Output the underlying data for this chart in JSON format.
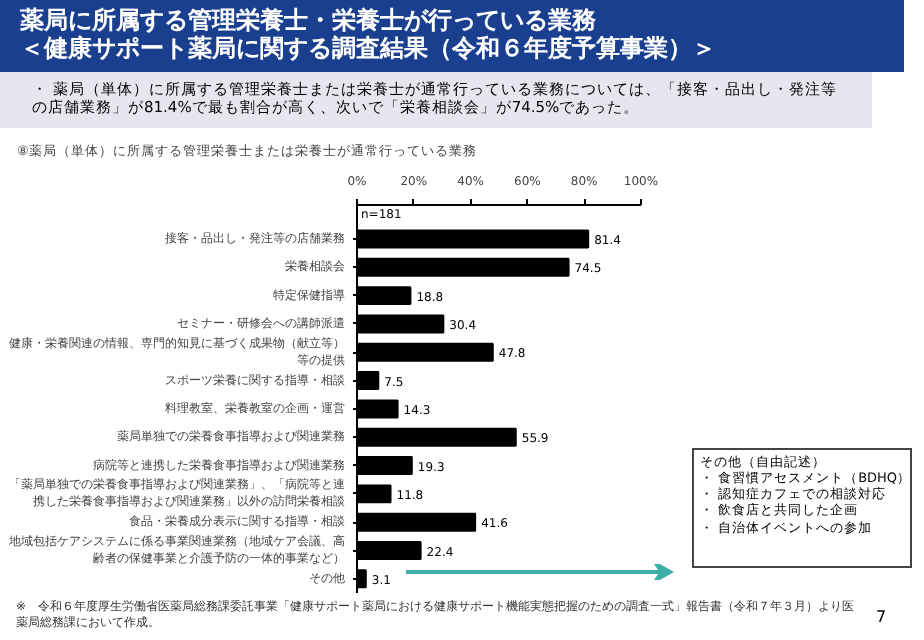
{
  "chart_data": {
    "type": "bar",
    "orientation": "horizontal",
    "title": "薬局に所属する管理栄養士・栄養士が行っている業務",
    "subtitle": "＜健康サポート薬局に関する調査結果（令和６年度予算事業）＞",
    "categories": [
      "接客・品出し・発注等の店舗業務",
      "栄養相談会",
      "特定保健指導",
      "セミナー・研修会への講師派遣",
      "健康・栄養関連の情報、専門的知見に基づく成果物（献立等）等の提供",
      "スポーツ栄養に関する指導・相談",
      "料理教室、栄養教室の企画・運営",
      "薬局単独での栄養食事指導および関連業務",
      "病院等と連携した栄養食事指導および関連業務",
      "「薬局単独での栄養食事指導および関連業務」、「病院等と連携した栄養食事指導および関連業務」以外の訪問栄養相談",
      "食品・栄養成分表示に関する指導・相談",
      "地域包括ケアシステムに係る事業関連業務（地域ケア会議、高齢者の保健事業と介護予防の一体的事業など）",
      "その他"
    ],
    "values": [
      81.4,
      74.5,
      18.8,
      30.4,
      47.8,
      7.5,
      14.3,
      55.9,
      19.3,
      11.8,
      41.6,
      22.4,
      3.1
    ],
    "color": "#000000",
    "xlim": [
      0,
      100
    ],
    "xticks": [
      {
        "value": 0,
        "label": "0%"
      },
      {
        "value": 20,
        "label": "20%"
      },
      {
        "value": 40,
        "label": "40%"
      },
      {
        "value": 60,
        "label": "60%"
      },
      {
        "value": 80,
        "label": "80%"
      },
      {
        "value": 100,
        "label": "100%"
      }
    ],
    "data_labels": true,
    "grid": false,
    "annotations": [
      "・ 薬局（単体）に所属する管理栄養士または栄養士が通常行っている業務については、「接客・品出し・発注等の店舗業務」が81.4%で最も割合が高く、次いで「栄養相談会」が74.5%であった。",
      "⑧薬局（単体）に所属する管理栄養士または栄養士が通常行っている業務",
      "n=181",
      "その他（自由記述）",
      "・ 食習慣アセスメント（BDHQ）",
      "・ 認知症カフェでの相談対応",
      "・ 飲食店と共同した企画",
      "・ 自治体イベントへの参加",
      "※　令和６年度厚生労働省医薬局総務課委託事業「健康サポート薬局における健康サポート機能実態把握のための調査一式」報告書（令和７年３月）より医薬局総務課において作成。",
      "7"
    ]
  }
}
